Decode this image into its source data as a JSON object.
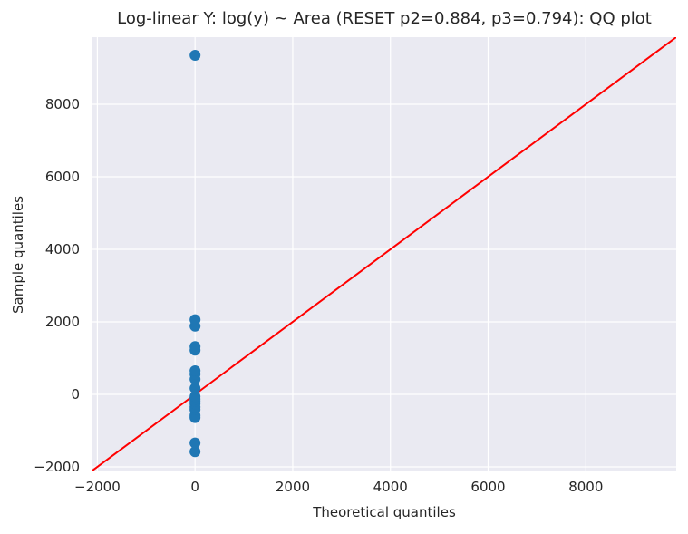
{
  "chart_data": {
    "type": "scatter",
    "title": "Log-linear Y: log(y) ~ Area (RESET p2=0.884, p3=0.794): QQ plot",
    "xlabel": "Theoretical quantiles",
    "ylabel": "Sample quantiles",
    "xlim": [
      -2100,
      9850
    ],
    "ylim": [
      -2100,
      9850
    ],
    "xticks": [
      -2000,
      0,
      2000,
      4000,
      6000,
      8000
    ],
    "yticks": [
      -2000,
      0,
      2000,
      4000,
      6000,
      8000
    ],
    "xtick_labels": [
      "−2000",
      "0",
      "2000",
      "4000",
      "6000",
      "8000"
    ],
    "ytick_labels": [
      "−2000",
      "0",
      "2000",
      "4000",
      "6000",
      "8000"
    ],
    "grid": true,
    "background": "#eaeaf2",
    "grid_color": "#ffffff",
    "point_color": "#1f77b4",
    "line_color": "#ff0000",
    "reference_line": {
      "type": "45-degree",
      "slope": 1,
      "intercept": 0
    },
    "points": [
      {
        "x": -0.5,
        "y": -1580
      },
      {
        "x": -0.4,
        "y": -1340
      },
      {
        "x": -0.3,
        "y": -640
      },
      {
        "x": -0.25,
        "y": -580
      },
      {
        "x": -0.2,
        "y": -420
      },
      {
        "x": -0.15,
        "y": -350
      },
      {
        "x": -0.1,
        "y": -260
      },
      {
        "x": -0.05,
        "y": -190
      },
      {
        "x": 0.0,
        "y": -130
      },
      {
        "x": 0.05,
        "y": -60
      },
      {
        "x": 0.1,
        "y": 170
      },
      {
        "x": 0.15,
        "y": 420
      },
      {
        "x": 0.2,
        "y": 560
      },
      {
        "x": 0.25,
        "y": 650
      },
      {
        "x": 0.3,
        "y": 1220
      },
      {
        "x": 0.35,
        "y": 1320
      },
      {
        "x": 0.4,
        "y": 1880
      },
      {
        "x": 0.45,
        "y": 2060
      },
      {
        "x": 0.5,
        "y": 9350
      }
    ]
  }
}
